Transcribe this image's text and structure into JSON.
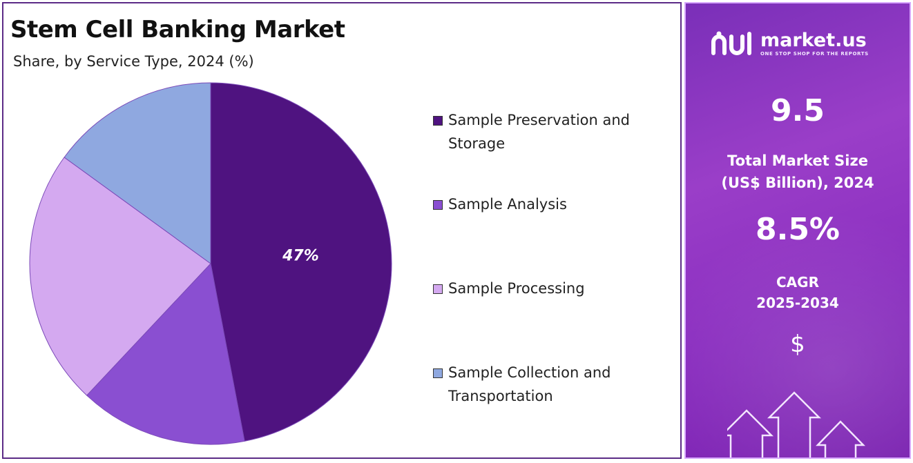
{
  "header": {
    "title": "Stem Cell Banking Market",
    "subtitle": "Share, by Service Type, 2024 (%)"
  },
  "chart_data": {
    "type": "pie",
    "categories": [
      "Sample Preservation and Storage",
      "Sample Analysis",
      "Sample Processing",
      "Sample Collection and Transportation"
    ],
    "values": [
      47,
      15,
      23,
      15
    ],
    "colors": [
      "#4f1380",
      "#8a4fd1",
      "#d4a9f0",
      "#8fa8e0"
    ],
    "data_labels": [
      "47%",
      "",
      "",
      ""
    ],
    "legend_placement": "right"
  },
  "legend": {
    "items": [
      {
        "label": "Sample Preservation and Storage",
        "color": "#4f1380"
      },
      {
        "label": "Sample Analysis",
        "color": "#8a4fd1"
      },
      {
        "label": "Sample Processing",
        "color": "#d4a9f0"
      },
      {
        "label": "Sample Collection and Transportation",
        "color": "#8fa8e0"
      }
    ]
  },
  "sidebar": {
    "brand": "market.us",
    "tagline": "ONE STOP SHOP FOR THE REPORTS",
    "market_size_value": "9.5",
    "market_size_label": "Total Market Size (US$ Billion), 2024",
    "cagr_value": "8.5%",
    "cagr_label": "CAGR",
    "cagr_period": "2025-2034",
    "currency_symbol": "$"
  }
}
